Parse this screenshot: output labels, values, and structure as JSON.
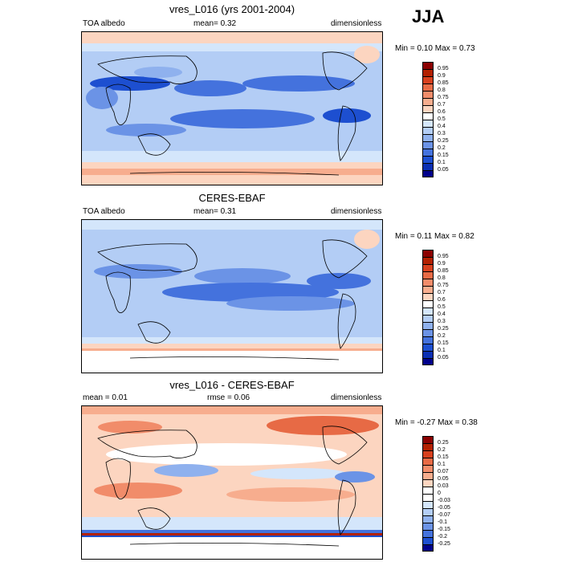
{
  "season": "JJA",
  "panels": [
    {
      "id": "model",
      "title": "vres_L016 (yrs 2001-2004)",
      "left_label": "TOA albedo",
      "center_label": "mean=   0.32",
      "right_label": "dimensionless",
      "minmax": "Min =   0.10 Max =   0.73",
      "levels": [
        "0.95",
        "0.9",
        "0.85",
        "0.8",
        "0.75",
        "0.7",
        "0.6",
        "0.5",
        "0.4",
        "0.3",
        "0.25",
        "0.2",
        "0.15",
        "0.1",
        "0.05"
      ],
      "colors": [
        "#8b0000",
        "#b22000",
        "#d7401e",
        "#e76a45",
        "#f18c6a",
        "#f7ad8e",
        "#fcd5c0",
        "#ffffff",
        "#d4e6fb",
        "#b3cdf5",
        "#8fb1ee",
        "#6b93e6",
        "#4472dd",
        "#1d4fd0",
        "#0a2fb3",
        "#00008b"
      ]
    },
    {
      "id": "obs",
      "title": "CERES-EBAF",
      "left_label": "TOA albedo",
      "center_label": "mean=   0.31",
      "right_label": "dimensionless",
      "minmax": "Min =   0.11 Max =   0.82",
      "levels": [
        "0.95",
        "0.9",
        "0.85",
        "0.8",
        "0.75",
        "0.7",
        "0.6",
        "0.5",
        "0.4",
        "0.3",
        "0.25",
        "0.2",
        "0.15",
        "0.1",
        "0.05"
      ],
      "colors": [
        "#8b0000",
        "#b22000",
        "#d7401e",
        "#e76a45",
        "#f18c6a",
        "#f7ad8e",
        "#fcd5c0",
        "#ffffff",
        "#d4e6fb",
        "#b3cdf5",
        "#8fb1ee",
        "#6b93e6",
        "#4472dd",
        "#1d4fd0",
        "#0a2fb3",
        "#00008b"
      ]
    },
    {
      "id": "diff",
      "title": "vres_L016 - CERES-EBAF",
      "left_label": "mean =   0.01",
      "center_label": "rmse =   0.06",
      "right_label": "dimensionless",
      "minmax": "Min = -0.27 Max =   0.38",
      "levels": [
        "0.25",
        "0.2",
        "0.15",
        "0.1",
        "0.07",
        "0.05",
        "0.03",
        "0",
        "-0.03",
        "-0.05",
        "-0.07",
        "-0.1",
        "-0.15",
        "-0.2",
        "-0.25"
      ],
      "colors": [
        "#8b0000",
        "#b22000",
        "#d7401e",
        "#e76a45",
        "#f18c6a",
        "#f7ad8e",
        "#fcd5c0",
        "#ffffff",
        "#ffffff",
        "#d4e6fb",
        "#b3cdf5",
        "#8fb1ee",
        "#6b93e6",
        "#4472dd",
        "#1d4fd0",
        "#00008b"
      ]
    }
  ]
}
